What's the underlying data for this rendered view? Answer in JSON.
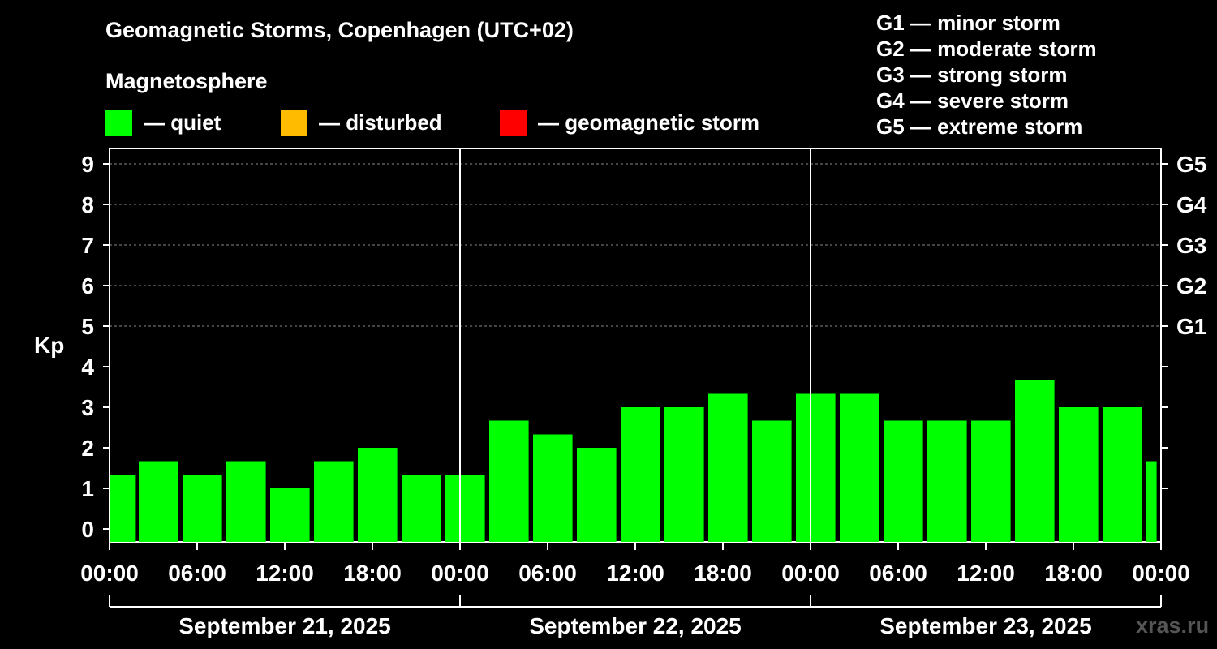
{
  "title": "Geomagnetic Storms, Copenhagen (UTC+02)",
  "subtitle": "Magnetosphere",
  "legend": [
    {
      "label": "— quiet",
      "color": "#00ff00"
    },
    {
      "label": "— disturbed",
      "color": "#ffbb00"
    },
    {
      "label": "— geomagnetic storm",
      "color": "#ff0000"
    }
  ],
  "storm_scale": [
    "G1 — minor storm",
    "G2 — moderate storm",
    "G3 — strong storm",
    "G4 — severe storm",
    "G5 — extreme storm"
  ],
  "watermark": "xras.ru",
  "chart_data": {
    "type": "bar",
    "title": "Geomagnetic Storms, Copenhagen (UTC+02)",
    "ylabel": "Kp",
    "ylim": [
      0,
      9
    ],
    "yticks": [
      0,
      1,
      2,
      3,
      4,
      5,
      6,
      7,
      8,
      9
    ],
    "right_axis_labels": [
      {
        "kp": 5,
        "label": "G1"
      },
      {
        "kp": 6,
        "label": "G2"
      },
      {
        "kp": 7,
        "label": "G3"
      },
      {
        "kp": 8,
        "label": "G4"
      },
      {
        "kp": 9,
        "label": "G5"
      }
    ],
    "x_range_hours": [
      0,
      72
    ],
    "xticks": [
      {
        "hour": 0,
        "label": "00:00"
      },
      {
        "hour": 6,
        "label": "06:00"
      },
      {
        "hour": 12,
        "label": "12:00"
      },
      {
        "hour": 18,
        "label": "18:00"
      },
      {
        "hour": 24,
        "label": "00:00"
      },
      {
        "hour": 30,
        "label": "06:00"
      },
      {
        "hour": 36,
        "label": "12:00"
      },
      {
        "hour": 42,
        "label": "18:00"
      },
      {
        "hour": 48,
        "label": "00:00"
      },
      {
        "hour": 54,
        "label": "06:00"
      },
      {
        "hour": 60,
        "label": "12:00"
      },
      {
        "hour": 66,
        "label": "18:00"
      },
      {
        "hour": 72,
        "label": "00:00"
      }
    ],
    "days": [
      {
        "label": "September 21, 2025",
        "start": 0,
        "end": 24
      },
      {
        "label": "September 22, 2025",
        "start": 24,
        "end": 48
      },
      {
        "label": "September 23, 2025",
        "start": 48,
        "end": 72
      }
    ],
    "grid_kp": [
      5,
      6,
      7,
      8,
      9
    ],
    "bar_color": "#00ff00",
    "series": [
      {
        "name": "Kp",
        "bars": [
          {
            "start": 0,
            "end": 1.8,
            "kp": 1.33
          },
          {
            "start": 2,
            "end": 4.7,
            "kp": 1.67
          },
          {
            "start": 5,
            "end": 7.7,
            "kp": 1.33
          },
          {
            "start": 8,
            "end": 10.7,
            "kp": 1.67
          },
          {
            "start": 11,
            "end": 13.7,
            "kp": 1.0
          },
          {
            "start": 14,
            "end": 16.7,
            "kp": 1.67
          },
          {
            "start": 17,
            "end": 19.7,
            "kp": 2.0
          },
          {
            "start": 20,
            "end": 22.7,
            "kp": 1.33
          },
          {
            "start": 23,
            "end": 25.7,
            "kp": 1.33
          },
          {
            "start": 26,
            "end": 28.7,
            "kp": 2.67
          },
          {
            "start": 29,
            "end": 31.7,
            "kp": 2.33
          },
          {
            "start": 32,
            "end": 34.7,
            "kp": 2.0
          },
          {
            "start": 35,
            "end": 37.7,
            "kp": 3.0
          },
          {
            "start": 38,
            "end": 40.7,
            "kp": 3.0
          },
          {
            "start": 41,
            "end": 43.7,
            "kp": 3.33
          },
          {
            "start": 44,
            "end": 46.7,
            "kp": 2.67
          },
          {
            "start": 47,
            "end": 49.7,
            "kp": 3.33
          },
          {
            "start": 50,
            "end": 52.7,
            "kp": 3.33
          },
          {
            "start": 53,
            "end": 55.7,
            "kp": 2.67
          },
          {
            "start": 56,
            "end": 58.7,
            "kp": 2.67
          },
          {
            "start": 59,
            "end": 61.7,
            "kp": 2.67
          },
          {
            "start": 62,
            "end": 64.7,
            "kp": 3.67
          },
          {
            "start": 65,
            "end": 67.7,
            "kp": 3.0
          },
          {
            "start": 68,
            "end": 70.7,
            "kp": 3.0
          },
          {
            "start": 71,
            "end": 71.7,
            "kp": 1.67
          }
        ]
      }
    ]
  }
}
